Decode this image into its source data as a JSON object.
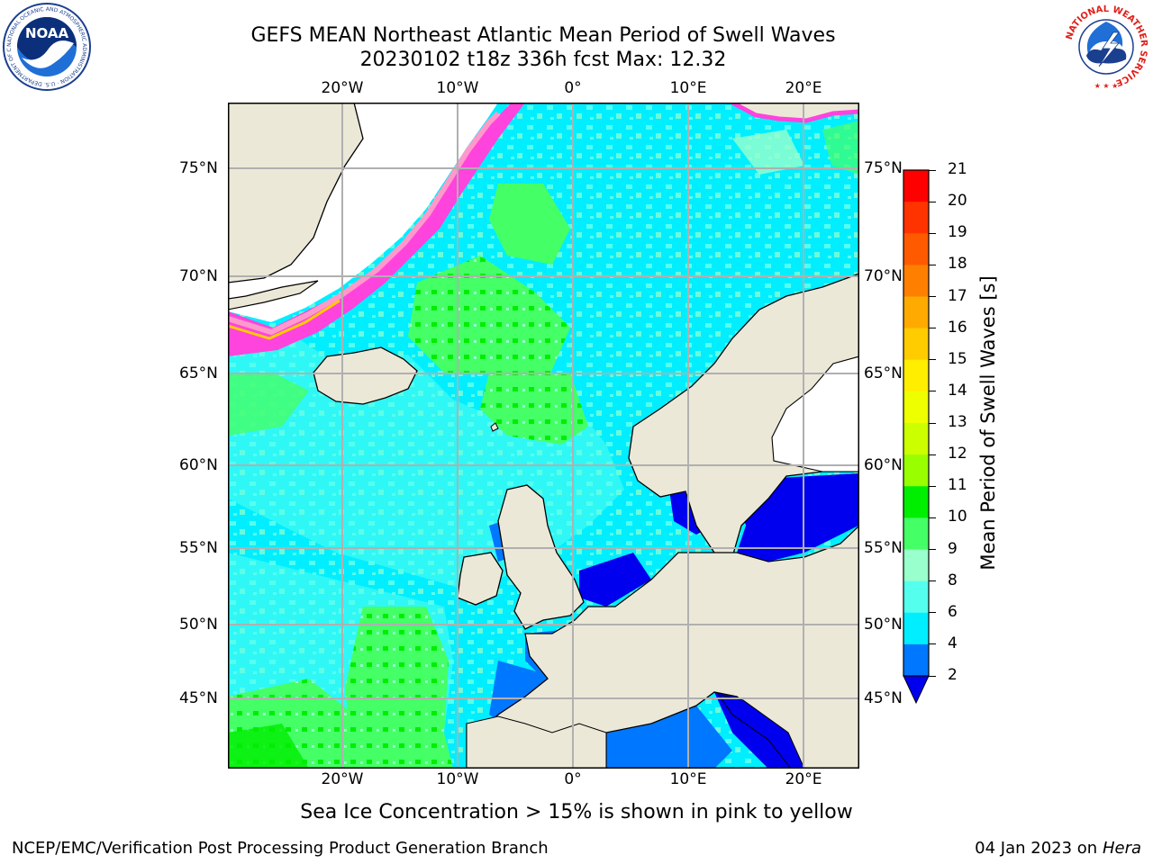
{
  "title": {
    "line1": "GEFS MEAN Northeast Atlantic Mean Period of Swell Waves",
    "line2": "20230102 t18z 336h fcst   Max: 12.32"
  },
  "map": {
    "lon_labels": [
      "20°W",
      "10°W",
      "0°",
      "10°E",
      "20°E"
    ],
    "lat_labels": [
      "75°N",
      "70°N",
      "65°N",
      "60°N",
      "55°N",
      "50°N",
      "45°N"
    ],
    "colors": {
      "land": "#ece8d8",
      "grid": "#b0b0b0",
      "ice_white": "#ffffff",
      "coast": "#000000"
    }
  },
  "colorbar": {
    "label": "Mean Period of Swell Waves [s]",
    "ticks": [
      "21",
      "20",
      "19",
      "18",
      "17",
      "16",
      "15",
      "14",
      "13",
      "12",
      "11",
      "10",
      "9",
      "8",
      "6",
      "4",
      "2"
    ],
    "colors": [
      "#ff0000",
      "#ff3300",
      "#ff5a00",
      "#ff8000",
      "#ffaa00",
      "#ffcc00",
      "#ffee00",
      "#eeff00",
      "#ccff00",
      "#99ff00",
      "#00ee00",
      "#44ff66",
      "#99ffcc",
      "#55ffee",
      "#00eeff",
      "#0077ff"
    ],
    "extend_color": "#0000ee"
  },
  "note": "Sea Ice Concentration > 15% is shown in pink to yellow",
  "footer": {
    "left": "NCEP/EMC/Verification Post Processing Product Generation Branch",
    "date": "04 Jan 2023 on ",
    "machine": "Hera"
  },
  "logos": {
    "noaa_text": "NOAA",
    "noaa_ring_text": "NATIONAL OCEANIC AND ATMOSPHERIC ADMINISTRATION · U.S. DEPARTMENT OF COMMERCE",
    "nws_ring_text": "NATIONAL WEATHER SERVICE"
  }
}
